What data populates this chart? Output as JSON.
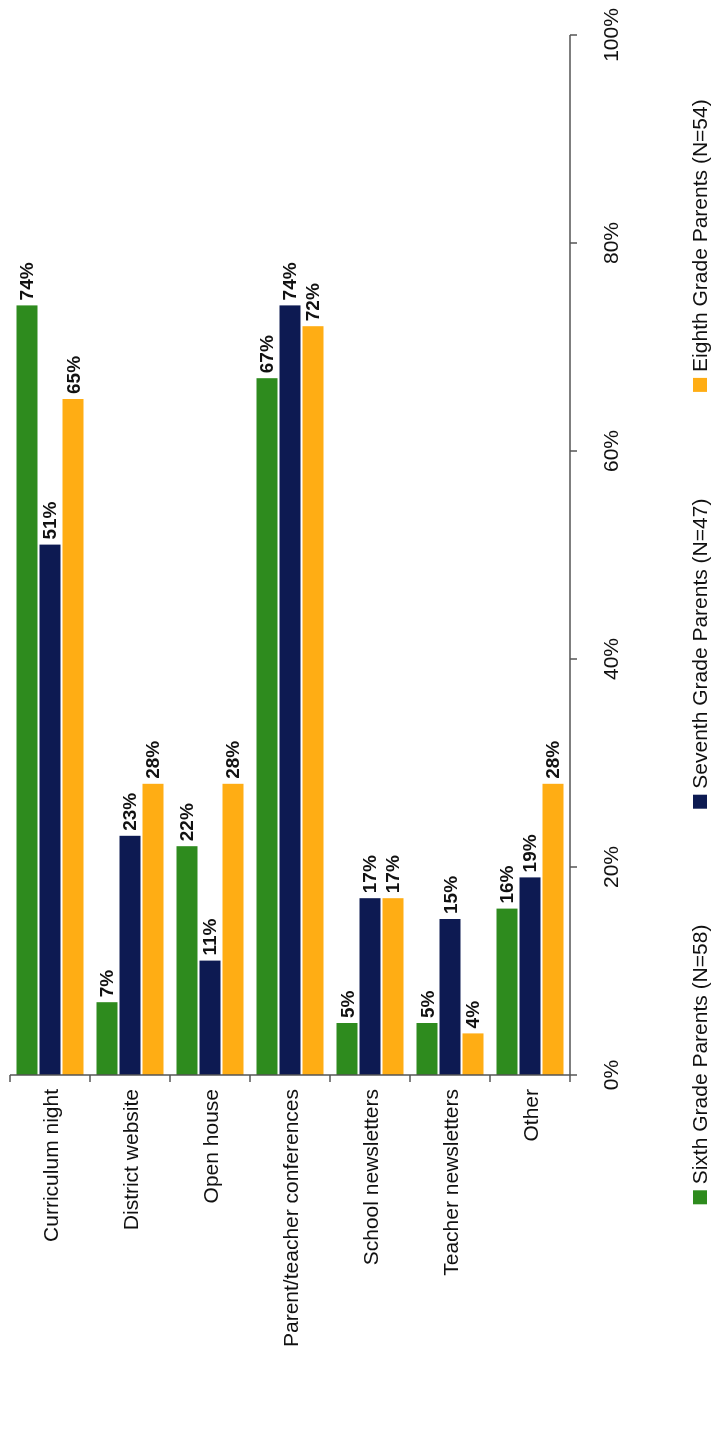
{
  "chart_data": {
    "type": "bar",
    "categories": [
      "Curriculum night",
      "District website",
      "Open house",
      "Parent/teacher conferences",
      "School newsletters",
      "Teacher newsletters",
      "Other"
    ],
    "series": [
      {
        "name": "Sixth Grade Parents (N=58)",
        "color": "#2e8b1e",
        "values": [
          74,
          7,
          22,
          67,
          5,
          5,
          16
        ],
        "value_labels": [
          "74%",
          "7%",
          "22%",
          "67%",
          "5%",
          "5%",
          "16%"
        ]
      },
      {
        "name": "Seventh Grade Parents (N=47)",
        "color": "#0d1a52",
        "values": [
          51,
          23,
          11,
          74,
          17,
          15,
          19
        ],
        "value_labels": [
          "51%",
          "23%",
          "11%",
          "74%",
          "17%",
          "15%",
          "19%"
        ]
      },
      {
        "name": "Eighth Grade Parents (N=54)",
        "color": "#ffad14",
        "values": [
          65,
          28,
          28,
          72,
          17,
          4,
          28
        ],
        "value_labels": [
          "65%",
          "28%",
          "28%",
          "72%",
          "17%",
          "4%",
          "28%"
        ]
      }
    ],
    "ylim": [
      0,
      100
    ],
    "yticks": [
      {
        "value": 0,
        "label": "0%"
      },
      {
        "value": 20,
        "label": "20%"
      },
      {
        "value": 40,
        "label": "40%"
      },
      {
        "value": 60,
        "label": "60%"
      },
      {
        "value": 80,
        "label": "80%"
      },
      {
        "value": 100,
        "label": "100%"
      }
    ],
    "grid": false,
    "legend": "right"
  }
}
